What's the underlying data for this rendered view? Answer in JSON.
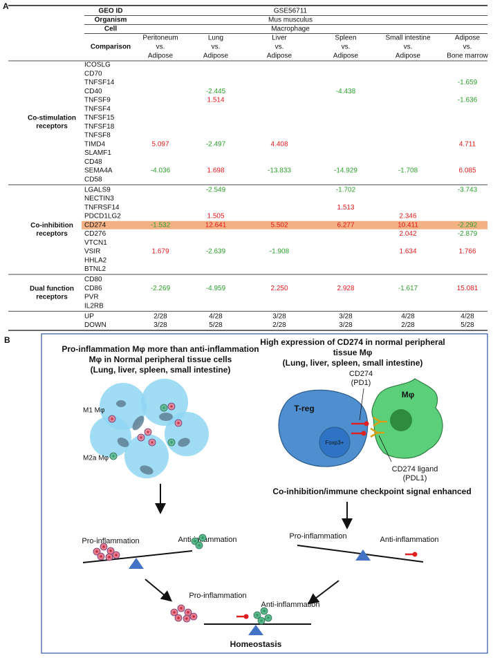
{
  "panel_a": {
    "label": "A",
    "header": [
      {
        "label": "GEO ID",
        "value": "GSE56711"
      },
      {
        "label": "Organism",
        "value": "Mus musculus"
      },
      {
        "label": "Cell",
        "value": "Macrophage"
      }
    ],
    "comparison_label": "Comparison",
    "columns": [
      [
        "Peritoneum",
        "vs.",
        "Adipose"
      ],
      [
        "Lung",
        "vs.",
        "Adipose"
      ],
      [
        "Liver",
        "vs.",
        "Adipose"
      ],
      [
        "Spleen",
        "vs.",
        "Adipose"
      ],
      [
        "Small intestine",
        "vs.",
        "Adipose"
      ],
      [
        "Adipose",
        "vs.",
        "Bone marrow"
      ]
    ],
    "up_color": "#e31a1c",
    "down_color": "#2ca02c",
    "highlight_color": "#f4b183",
    "groups": [
      {
        "label": [
          "Co-stimulation",
          "receptors"
        ],
        "rows": [
          {
            "gene": "ICOSLG",
            "values": [
              null,
              null,
              null,
              null,
              null,
              null
            ]
          },
          {
            "gene": "CD70",
            "values": [
              null,
              null,
              null,
              null,
              null,
              null
            ]
          },
          {
            "gene": "TNFSF14",
            "values": [
              null,
              null,
              null,
              null,
              null,
              "-1.659"
            ]
          },
          {
            "gene": "CD40",
            "values": [
              null,
              "-2.445",
              null,
              "-4.438",
              null,
              null
            ]
          },
          {
            "gene": "TNFSF9",
            "values": [
              null,
              "1.514",
              null,
              null,
              null,
              "-1.636"
            ]
          },
          {
            "gene": "TNFSF4",
            "values": [
              null,
              null,
              null,
              null,
              null,
              null
            ]
          },
          {
            "gene": "TNFSF15",
            "values": [
              null,
              null,
              null,
              null,
              null,
              null
            ]
          },
          {
            "gene": "TNFSF18",
            "values": [
              null,
              null,
              null,
              null,
              null,
              null
            ]
          },
          {
            "gene": "TNFSF8",
            "values": [
              null,
              null,
              null,
              null,
              null,
              null
            ]
          },
          {
            "gene": "TIMD4",
            "values": [
              "5.097",
              "-2.497",
              "4.408",
              null,
              null,
              "4.711"
            ]
          },
          {
            "gene": "SLAMF1",
            "values": [
              null,
              null,
              null,
              null,
              null,
              null
            ]
          },
          {
            "gene": "CD48",
            "values": [
              null,
              null,
              null,
              null,
              null,
              null
            ]
          },
          {
            "gene": "SEMA4A",
            "values": [
              "-4.036",
              "1.698",
              "-13.833",
              "-14.929",
              "-1.708",
              "6.085"
            ]
          },
          {
            "gene": "CD58",
            "values": [
              null,
              null,
              null,
              null,
              null,
              null
            ]
          }
        ]
      },
      {
        "label": [
          "Co-inhibition",
          "receptors"
        ],
        "rows": [
          {
            "gene": "LGALS9",
            "values": [
              null,
              "-2.549",
              null,
              "-1.702",
              null,
              "-3.743"
            ]
          },
          {
            "gene": "NECTIN3",
            "values": [
              null,
              null,
              null,
              null,
              null,
              null
            ]
          },
          {
            "gene": "TNFRSF14",
            "values": [
              null,
              null,
              null,
              "1.513",
              null,
              null
            ]
          },
          {
            "gene": "PDCD1LG2",
            "values": [
              null,
              "1.505",
              null,
              null,
              "2.346",
              null
            ]
          },
          {
            "gene": "CD274",
            "values": [
              "-1.532",
              "12.641",
              "5.502",
              "6.277",
              "10.411",
              "-2.292"
            ],
            "highlight": true
          },
          {
            "gene": "CD276",
            "values": [
              null,
              null,
              null,
              null,
              "2.042",
              "-2.879"
            ]
          },
          {
            "gene": "VTCN1",
            "values": [
              null,
              null,
              null,
              null,
              null,
              null
            ]
          },
          {
            "gene": "VSIR",
            "values": [
              "1.679",
              "-2.639",
              "-1.908",
              null,
              "1.634",
              "1.766"
            ]
          },
          {
            "gene": "HHLA2",
            "values": [
              null,
              null,
              null,
              null,
              null,
              null
            ]
          },
          {
            "gene": "BTNL2",
            "values": [
              null,
              null,
              null,
              null,
              null,
              null
            ]
          }
        ]
      },
      {
        "label": [
          "Dual function",
          "receptors"
        ],
        "rows": [
          {
            "gene": "CD80",
            "values": [
              null,
              null,
              null,
              null,
              null,
              null
            ]
          },
          {
            "gene": "CD86",
            "values": [
              "-2.269",
              "-4.959",
              "2.250",
              "2.928",
              "-1.617",
              "15.081"
            ]
          },
          {
            "gene": "PVR",
            "values": [
              null,
              null,
              null,
              null,
              null,
              null
            ]
          },
          {
            "gene": "IL2RB",
            "values": [
              null,
              null,
              null,
              null,
              null,
              null
            ]
          }
        ]
      }
    ],
    "summary": [
      {
        "label": "UP",
        "values": [
          "2/28",
          "4/28",
          "3/28",
          "3/28",
          "4/28",
          "4/28"
        ]
      },
      {
        "label": "DOWN",
        "values": [
          "3/28",
          "5/28",
          "2/28",
          "3/28",
          "2/28",
          "5/28"
        ]
      }
    ]
  },
  "panel_b": {
    "label": "B",
    "left_title": [
      "Pro-inflammation Mφ more than anti-inflammation",
      "Mφ in Normal peripheral tissue cells",
      "(Lung, liver, spleen, small intestine)"
    ],
    "m1_label": "M1 Mφ",
    "m2a_label": "M2a Mφ",
    "left_pro": "Pro-inflammation",
    "left_anti": "Anti-inflammation",
    "right_title": [
      "High expression of CD274 in normal peripheral",
      "tissue Mφ",
      "(Lung, liver, spleen, small intestine)"
    ],
    "receptor_label": [
      "CD274",
      "(PD1)"
    ],
    "treg_label": "T-reg",
    "foxp3_label": "Foxp3+",
    "macrophage_label": "Mφ",
    "ligand_label": [
      "CD274 ligand",
      "(PDL1)"
    ],
    "signal_label": "Co-inhibition/immune checkpoint signal enhanced",
    "right_pro": "Pro-inflammation",
    "right_anti": "Anti-inflammation",
    "bottom_pro": "Pro-inflammation",
    "bottom_anti": "Anti-inflammation",
    "homeostasis": "Homeostasis"
  }
}
